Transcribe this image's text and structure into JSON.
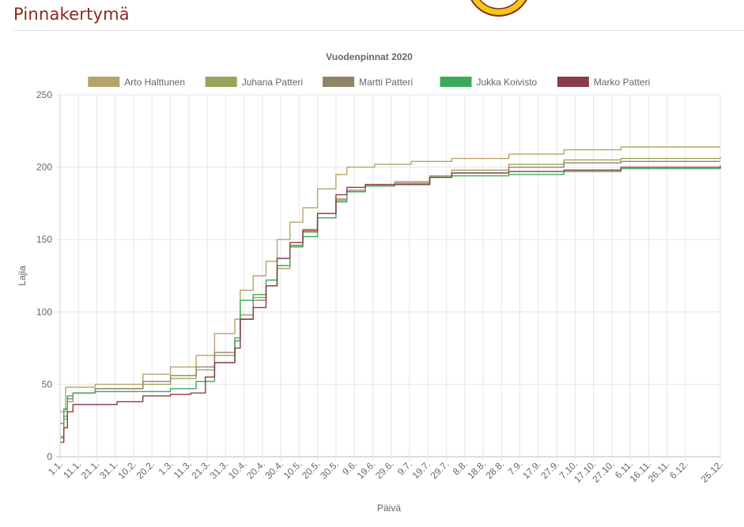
{
  "header": {
    "title": "Pinnakertymä"
  },
  "chart_data": {
    "type": "line",
    "title": "Vuodenpinnat 2020",
    "xlabel": "Päivä",
    "ylabel": "Lajia",
    "ylim": [
      0,
      250
    ],
    "y_ticks": [
      "0",
      "50",
      "100",
      "150",
      "200",
      "250"
    ],
    "grid": true,
    "legend_position": "top",
    "x_tick_labels": [
      "1.1.",
      "11.1.",
      "21.1.",
      "31.1.",
      "10.2.",
      "20.2.",
      "1.3.",
      "11.3.",
      "21.3.",
      "31.3.",
      "10.4.",
      "20.4.",
      "30.4.",
      "10.5.",
      "20.5.",
      "30.5.",
      "9.6.",
      "19.6.",
      "29.6.",
      "9.7.",
      "19.7.",
      "29.7.",
      "8.8.",
      "18.8.",
      "28.8.",
      "7.9.",
      "17.9.",
      "27.9.",
      "7.10.",
      "17.10.",
      "27.10.",
      "6.11.",
      "16.11.",
      "26.11.",
      "6.12.",
      "25.12."
    ],
    "x_domain": [
      "1.1.",
      "25.12."
    ],
    "series": [
      {
        "name": "Arto Halttunen",
        "color": "#b5a46a",
        "points": [
          [
            "1.1.",
            31
          ],
          [
            "4.1.",
            48
          ],
          [
            "20.1.",
            50
          ],
          [
            "15.2.",
            57
          ],
          [
            "1.3.",
            62
          ],
          [
            "15.3.",
            70
          ],
          [
            "25.3.",
            85
          ],
          [
            "5.4.",
            95
          ],
          [
            "8.4.",
            115
          ],
          [
            "15.4.",
            125
          ],
          [
            "22.4.",
            135
          ],
          [
            "28.4.",
            150
          ],
          [
            "5.5.",
            162
          ],
          [
            "12.5.",
            172
          ],
          [
            "20.5.",
            185
          ],
          [
            "30.5.",
            195
          ],
          [
            "5.6.",
            200
          ],
          [
            "20.6.",
            202
          ],
          [
            "10.7.",
            204
          ],
          [
            "1.8.",
            206
          ],
          [
            "1.9.",
            209
          ],
          [
            "1.10.",
            212
          ],
          [
            "1.11.",
            214
          ],
          [
            "25.12.",
            214
          ]
        ]
      },
      {
        "name": "Juhana Patteri",
        "color": "#9aa45a",
        "points": [
          [
            "1.1.",
            14
          ],
          [
            "3.1.",
            26
          ],
          [
            "5.1.",
            38
          ],
          [
            "8.1.",
            44
          ],
          [
            "20.1.",
            47
          ],
          [
            "15.2.",
            50
          ],
          [
            "1.3.",
            54
          ],
          [
            "15.3.",
            60
          ],
          [
            "25.3.",
            70
          ],
          [
            "5.4.",
            80
          ],
          [
            "8.4.",
            98
          ],
          [
            "15.4.",
            110
          ],
          [
            "22.4.",
            118
          ],
          [
            "28.4.",
            130
          ],
          [
            "5.5.",
            145
          ],
          [
            "12.5.",
            155
          ],
          [
            "20.5.",
            168
          ],
          [
            "30.5.",
            177
          ],
          [
            "5.6.",
            183
          ],
          [
            "15.6.",
            187
          ],
          [
            "1.7.",
            190
          ],
          [
            "20.7.",
            194
          ],
          [
            "1.8.",
            198
          ],
          [
            "1.9.",
            202
          ],
          [
            "1.10.",
            205
          ],
          [
            "1.11.",
            206
          ],
          [
            "25.12.",
            207
          ]
        ]
      },
      {
        "name": "Martti Patteri",
        "color": "#8f8466",
        "points": [
          [
            "1.1.",
            13
          ],
          [
            "3.1.",
            28
          ],
          [
            "5.1.",
            40
          ],
          [
            "8.1.",
            44
          ],
          [
            "20.1.",
            47
          ],
          [
            "15.2.",
            52
          ],
          [
            "1.3.",
            56
          ],
          [
            "15.3.",
            62
          ],
          [
            "25.3.",
            72
          ],
          [
            "5.4.",
            80
          ],
          [
            "8.4.",
            95
          ],
          [
            "15.4.",
            108
          ],
          [
            "22.4.",
            118
          ],
          [
            "28.4.",
            132
          ],
          [
            "5.5.",
            146
          ],
          [
            "12.5.",
            157
          ],
          [
            "20.5.",
            168
          ],
          [
            "30.5.",
            178
          ],
          [
            "5.6.",
            184
          ],
          [
            "15.6.",
            188
          ],
          [
            "1.7.",
            189
          ],
          [
            "20.7.",
            193
          ],
          [
            "1.8.",
            196
          ],
          [
            "1.9.",
            200
          ],
          [
            "1.10.",
            203
          ],
          [
            "1.11.",
            204
          ],
          [
            "25.12.",
            204
          ]
        ]
      },
      {
        "name": "Jukka Koivisto",
        "color": "#3aaa5a",
        "points": [
          [
            "1.1.",
            23
          ],
          [
            "3.1.",
            33
          ],
          [
            "5.1.",
            42
          ],
          [
            "8.1.",
            44
          ],
          [
            "20.1.",
            45
          ],
          [
            "15.2.",
            45
          ],
          [
            "1.3.",
            47
          ],
          [
            "15.3.",
            52
          ],
          [
            "25.3.",
            65
          ],
          [
            "5.4.",
            82
          ],
          [
            "8.4.",
            108
          ],
          [
            "15.4.",
            112
          ],
          [
            "22.4.",
            122
          ],
          [
            "28.4.",
            132
          ],
          [
            "5.5.",
            145
          ],
          [
            "12.5.",
            152
          ],
          [
            "20.5.",
            165
          ],
          [
            "30.5.",
            176
          ],
          [
            "5.6.",
            183
          ],
          [
            "15.6.",
            187
          ],
          [
            "1.7.",
            188
          ],
          [
            "20.7.",
            193
          ],
          [
            "1.8.",
            194
          ],
          [
            "1.9.",
            195
          ],
          [
            "1.10.",
            197
          ],
          [
            "1.11.",
            199
          ],
          [
            "25.12.",
            200
          ]
        ]
      },
      {
        "name": "Marko Patteri",
        "color": "#8a3c48",
        "points": [
          [
            "1.1.",
            10
          ],
          [
            "3.1.",
            20
          ],
          [
            "5.1.",
            31
          ],
          [
            "8.1.",
            36
          ],
          [
            "15.1.",
            36
          ],
          [
            "1.2.",
            38
          ],
          [
            "15.2.",
            42
          ],
          [
            "1.3.",
            43
          ],
          [
            "12.3.",
            44
          ],
          [
            "20.3.",
            55
          ],
          [
            "25.3.",
            65
          ],
          [
            "5.4.",
            75
          ],
          [
            "8.4.",
            95
          ],
          [
            "15.4.",
            103
          ],
          [
            "22.4.",
            118
          ],
          [
            "28.4.",
            137
          ],
          [
            "5.5.",
            148
          ],
          [
            "12.5.",
            156
          ],
          [
            "20.5.",
            168
          ],
          [
            "30.5.",
            181
          ],
          [
            "5.6.",
            186
          ],
          [
            "15.6.",
            188
          ],
          [
            "1.7.",
            188
          ],
          [
            "20.7.",
            193
          ],
          [
            "1.8.",
            196
          ],
          [
            "1.9.",
            197
          ],
          [
            "1.10.",
            198
          ],
          [
            "1.11.",
            200
          ],
          [
            "25.12.",
            201
          ]
        ]
      }
    ]
  }
}
